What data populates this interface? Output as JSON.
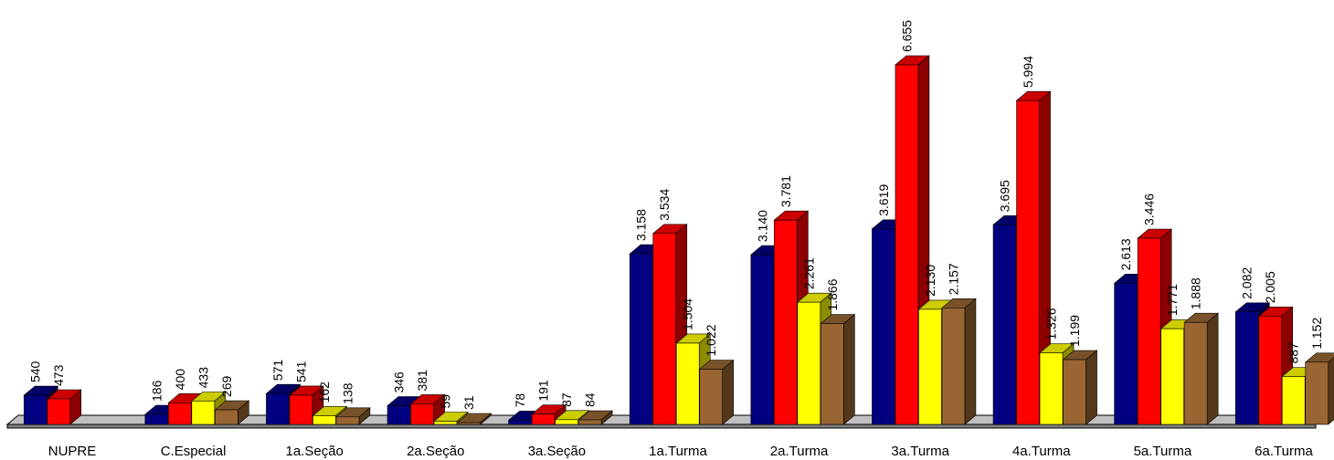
{
  "chart_data": {
    "type": "bar",
    "title": "",
    "xlabel": "",
    "ylabel": "",
    "ylim": [
      0,
      7000
    ],
    "grid": false,
    "legend": "none",
    "categories": [
      "NUPRE",
      "C.Especial",
      "1a.Seção",
      "2a.Seção",
      "3a.Seção",
      "1a.Turma",
      "2a.Turma",
      "3a.Turma",
      "4a.Turma",
      "5a.Turma",
      "6a.Turma"
    ],
    "series": [
      {
        "color": "#000080",
        "values": [
          540,
          186,
          571,
          346,
          78,
          3158,
          3140,
          3619,
          3695,
          2613,
          2082
        ],
        "labels": [
          "540",
          "186",
          "571",
          "346",
          "78",
          "3.158",
          "3.140",
          "3.619",
          "3.695",
          "2.613",
          "2.082"
        ]
      },
      {
        "color": "#ff0000",
        "values": [
          473,
          400,
          541,
          381,
          191,
          3534,
          3781,
          6655,
          5994,
          3446,
          2005
        ],
        "labels": [
          "473",
          "400",
          "541",
          "381",
          "191",
          "3.534",
          "3.781",
          "6.655",
          "5.994",
          "3.446",
          "2.005"
        ]
      },
      {
        "color": "#ffff00",
        "values": [
          null,
          433,
          162,
          59,
          87,
          1504,
          2261,
          2130,
          1326,
          1771,
          887
        ],
        "labels": [
          null,
          "433",
          "162",
          "59",
          "87",
          "1.504",
          "2.261",
          "2.130",
          "1.326",
          "1.771",
          "887"
        ]
      },
      {
        "color": "#996633",
        "values": [
          null,
          269,
          138,
          31,
          84,
          1022,
          1866,
          2157,
          1199,
          1888,
          1152
        ],
        "labels": [
          null,
          "269",
          "138",
          "31",
          "84",
          "1.022",
          "1.866",
          "2.157",
          "1.199",
          "1.888",
          "1.152"
        ]
      }
    ]
  }
}
